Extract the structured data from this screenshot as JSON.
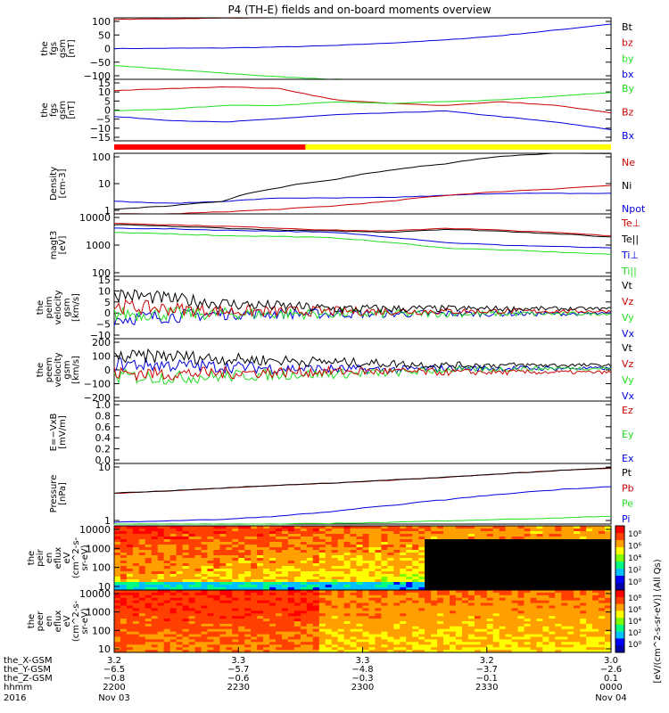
{
  "title": "P4 (TH-E) fields and on-board moments overview",
  "status_bar": {
    "colors": [
      "#ff0000",
      "#ffff00"
    ],
    "switch_fraction": 0.385
  },
  "colors": {
    "black": "#000000",
    "red": "#cc0000",
    "green": "#22dd22",
    "blue": "#0000dd",
    "darkred": "#aa0000"
  },
  "chart_data": [
    {
      "type": "line",
      "ylabel": [
        "the",
        "fgs",
        "gsm",
        "[nT]"
      ],
      "yticks": [
        "100",
        "50",
        "0",
        "−50",
        "−100"
      ],
      "ylim": [
        -100,
        100
      ],
      "legend": [
        "Bt",
        "bz",
        "by",
        "bx"
      ],
      "series": [
        {
          "name": "Bt",
          "values": [
            100,
            101,
            103,
            105,
            107,
            110,
            113,
            118,
            125,
            132
          ]
        },
        {
          "name": "bz",
          "values": [
            95,
            97,
            99,
            101,
            103,
            106,
            109,
            113,
            118,
            124
          ]
        },
        {
          "name": "by",
          "values": [
            -55,
            -68,
            -80,
            -92,
            -100,
            -106,
            -112,
            -118,
            -124,
            -130
          ]
        },
        {
          "name": "bx",
          "values": [
            0,
            1,
            2,
            5,
            10,
            18,
            28,
            42,
            60,
            80
          ]
        }
      ]
    },
    {
      "type": "line",
      "ylabel": [
        "the",
        "fgs",
        "gsm",
        "[nT]"
      ],
      "yticks": [
        "15",
        "10",
        "5",
        "0",
        "−5",
        "−10",
        "−15"
      ],
      "ylim": [
        -18,
        15
      ],
      "legend": [
        "By",
        "Bz",
        "Bx"
      ],
      "series": [
        {
          "name": "By",
          "values": [
            -2,
            -1,
            1,
            1,
            3,
            2,
            3,
            4,
            6,
            8
          ]
        },
        {
          "name": "Bz",
          "values": [
            9,
            10,
            11,
            10,
            4,
            2,
            1,
            3,
            1,
            -3
          ]
        },
        {
          "name": "Bx",
          "values": [
            -5,
            -7,
            -8,
            -6,
            -4,
            -3,
            -2,
            -5,
            -8,
            -12
          ]
        }
      ]
    },
    {
      "type": "line",
      "ylabel": [
        "Density",
        "[cm-3]"
      ],
      "yticks": [
        "100",
        "10",
        "1"
      ],
      "ylim": [
        1,
        200
      ],
      "log": true,
      "legend": [
        "Ne",
        "Ni",
        "Npot"
      ],
      "series": [
        {
          "name": "Ne",
          "values": [
            1,
            1,
            1.2,
            1.5,
            2,
            3,
            5,
            7,
            9,
            12
          ]
        },
        {
          "name": "Ni",
          "values": [
            1.5,
            2,
            3,
            10,
            20,
            45,
            80,
            150,
            200,
            200
          ]
        },
        {
          "name": "Npot",
          "values": [
            3,
            2.5,
            3,
            4,
            4,
            4.2,
            5,
            6,
            6,
            6
          ]
        }
      ]
    },
    {
      "type": "line",
      "ylabel": [
        "magt3",
        "[eV]"
      ],
      "yticks": [
        "10000",
        "1000",
        "100"
      ],
      "ylim": [
        100,
        10000
      ],
      "log": true,
      "legend": [
        "Te⊥",
        "Te||",
        "Ti⊥",
        "Ti||"
      ],
      "series": [
        {
          "name": "Te⊥",
          "values": [
            5000,
            4500,
            4000,
            3500,
            3000,
            2800,
            3500,
            3000,
            2500,
            2000
          ]
        },
        {
          "name": "Te||",
          "values": [
            4500,
            4000,
            3500,
            3000,
            2800,
            2600,
            3200,
            2800,
            2300,
            1800
          ]
        },
        {
          "name": "Ti⊥",
          "values": [
            3500,
            3300,
            3000,
            2800,
            2500,
            1800,
            1200,
            1000,
            900,
            800
          ]
        },
        {
          "name": "Ti||",
          "values": [
            2500,
            2300,
            2000,
            1900,
            1700,
            1200,
            800,
            700,
            600,
            500
          ]
        }
      ]
    },
    {
      "type": "line",
      "ylabel": [
        "the",
        "peim",
        "velocity",
        "gsm",
        "[km/s]"
      ],
      "yticks": [
        "15",
        "10",
        "5",
        "0",
        "−5",
        "−10"
      ],
      "ylim": [
        -10,
        15
      ],
      "legend": [
        "Vt",
        "Vz",
        "Vy",
        "Vx"
      ],
      "series": [
        {
          "name": "Vt",
          "values": [
            8,
            6,
            4,
            3,
            2,
            2,
            2,
            2,
            2,
            2
          ]
        },
        {
          "name": "Vz",
          "values": [
            3,
            2,
            1,
            1,
            1,
            1,
            1,
            1,
            1,
            1
          ]
        },
        {
          "name": "Vy",
          "values": [
            0,
            0,
            0,
            0,
            0,
            0,
            0,
            0,
            0,
            0
          ]
        },
        {
          "name": "Vx",
          "values": [
            -2,
            -1,
            0,
            0,
            0,
            0,
            0,
            0,
            0,
            0
          ]
        }
      ]
    },
    {
      "type": "line",
      "ylabel": [
        "the",
        "peem",
        "velocity",
        "gsm",
        "[km/s]"
      ],
      "yticks": [
        "200",
        "100",
        "0",
        "−100",
        "−200"
      ],
      "ylim": [
        -200,
        200
      ],
      "legend": [
        "Vt",
        "Vz",
        "Vy",
        "Vx"
      ],
      "series": [
        {
          "name": "Vt",
          "values": [
            80,
            90,
            70,
            60,
            50,
            40,
            30,
            30,
            30,
            30
          ]
        },
        {
          "name": "Vz",
          "values": [
            -20,
            -25,
            -20,
            -15,
            -10,
            -10,
            -15,
            -15,
            -15,
            -15
          ]
        },
        {
          "name": "Vy",
          "values": [
            -40,
            -50,
            -40,
            -30,
            -25,
            -20,
            0,
            5,
            10,
            10
          ]
        },
        {
          "name": "Vx",
          "values": [
            40,
            30,
            20,
            10,
            5,
            0,
            10,
            10,
            10,
            10
          ]
        }
      ]
    },
    {
      "type": "line",
      "ylabel": [
        "E=−VxB",
        "[mV/m]"
      ],
      "yticks": [
        "1.0",
        "0.8",
        "0.6",
        "0.4",
        "0.2",
        "0.0"
      ],
      "ylim": [
        0,
        1
      ],
      "legend": [
        "Ez",
        "Ey",
        "Ex"
      ],
      "series": []
    },
    {
      "type": "line",
      "ylabel": [
        "Pressure",
        "[nPa]"
      ],
      "yticks": [
        "10",
        "1"
      ],
      "ylim": [
        0.3,
        60
      ],
      "log": true,
      "legend": [
        "Pt",
        "Pb",
        "Pe",
        "Pi"
      ],
      "series": [
        {
          "name": "Pt",
          "values": [
            4.5,
            5.5,
            7,
            9,
            11,
            14,
            18,
            24,
            32,
            40
          ]
        },
        {
          "name": "Pb",
          "values": [
            4.4,
            5.4,
            6.9,
            8.9,
            10.8,
            13.8,
            17.8,
            23.8,
            31.8,
            39.8
          ]
        },
        {
          "name": "Pe",
          "values": [
            0.3,
            0.3,
            0.3,
            0.3,
            0.32,
            0.35,
            0.4,
            0.45,
            0.5,
            0.6
          ]
        },
        {
          "name": "Pi",
          "values": [
            0.35,
            0.4,
            0.45,
            0.6,
            0.9,
            1.5,
            2.5,
            4,
            6,
            8
          ]
        }
      ]
    },
    {
      "type": "heatmap",
      "ylabel": [
        "the",
        "peir",
        "en",
        "eflux",
        "eV",
        "(cm^2-s-",
        "sr-eV)"
      ],
      "yticks": [
        "10000",
        "1000",
        "100",
        "10"
      ],
      "colorbar_ticks": [
        "10⁸",
        "10⁶",
        "10⁴",
        "10²",
        "10⁰"
      ]
    },
    {
      "type": "heatmap",
      "ylabel": [
        "the",
        "peer",
        "en",
        "eflux",
        "eV",
        "(cm^2-s-",
        "sr-eV)"
      ],
      "yticks": [
        "10000",
        "1000",
        "100",
        "10"
      ],
      "colorbar_ticks": [
        "10⁸",
        "10⁶",
        "10⁴",
        "10²",
        "10⁰"
      ]
    }
  ],
  "colorbar_label": "[eV/(cm^2-s-sr-eV)] (All Qs)",
  "x_axis": {
    "rows": [
      {
        "label": "the_X-GSM",
        "values": [
          "3.2",
          "3.3",
          "3.3",
          "3.2",
          "3.0"
        ]
      },
      {
        "label": "the_Y-GSM",
        "values": [
          "−6.5",
          "−5.7",
          "−4.8",
          "−3.7",
          "−2.6"
        ]
      },
      {
        "label": "the_Z-GSM",
        "values": [
          "−0.8",
          "−0.6",
          "−0.3",
          "−0.1",
          "0.1"
        ]
      },
      {
        "label": "hhmm",
        "values": [
          "2200",
          "2230",
          "2300",
          "2330",
          "0000"
        ]
      }
    ],
    "year": "2016",
    "dates": [
      "Nov 03",
      "Nov 04"
    ]
  }
}
